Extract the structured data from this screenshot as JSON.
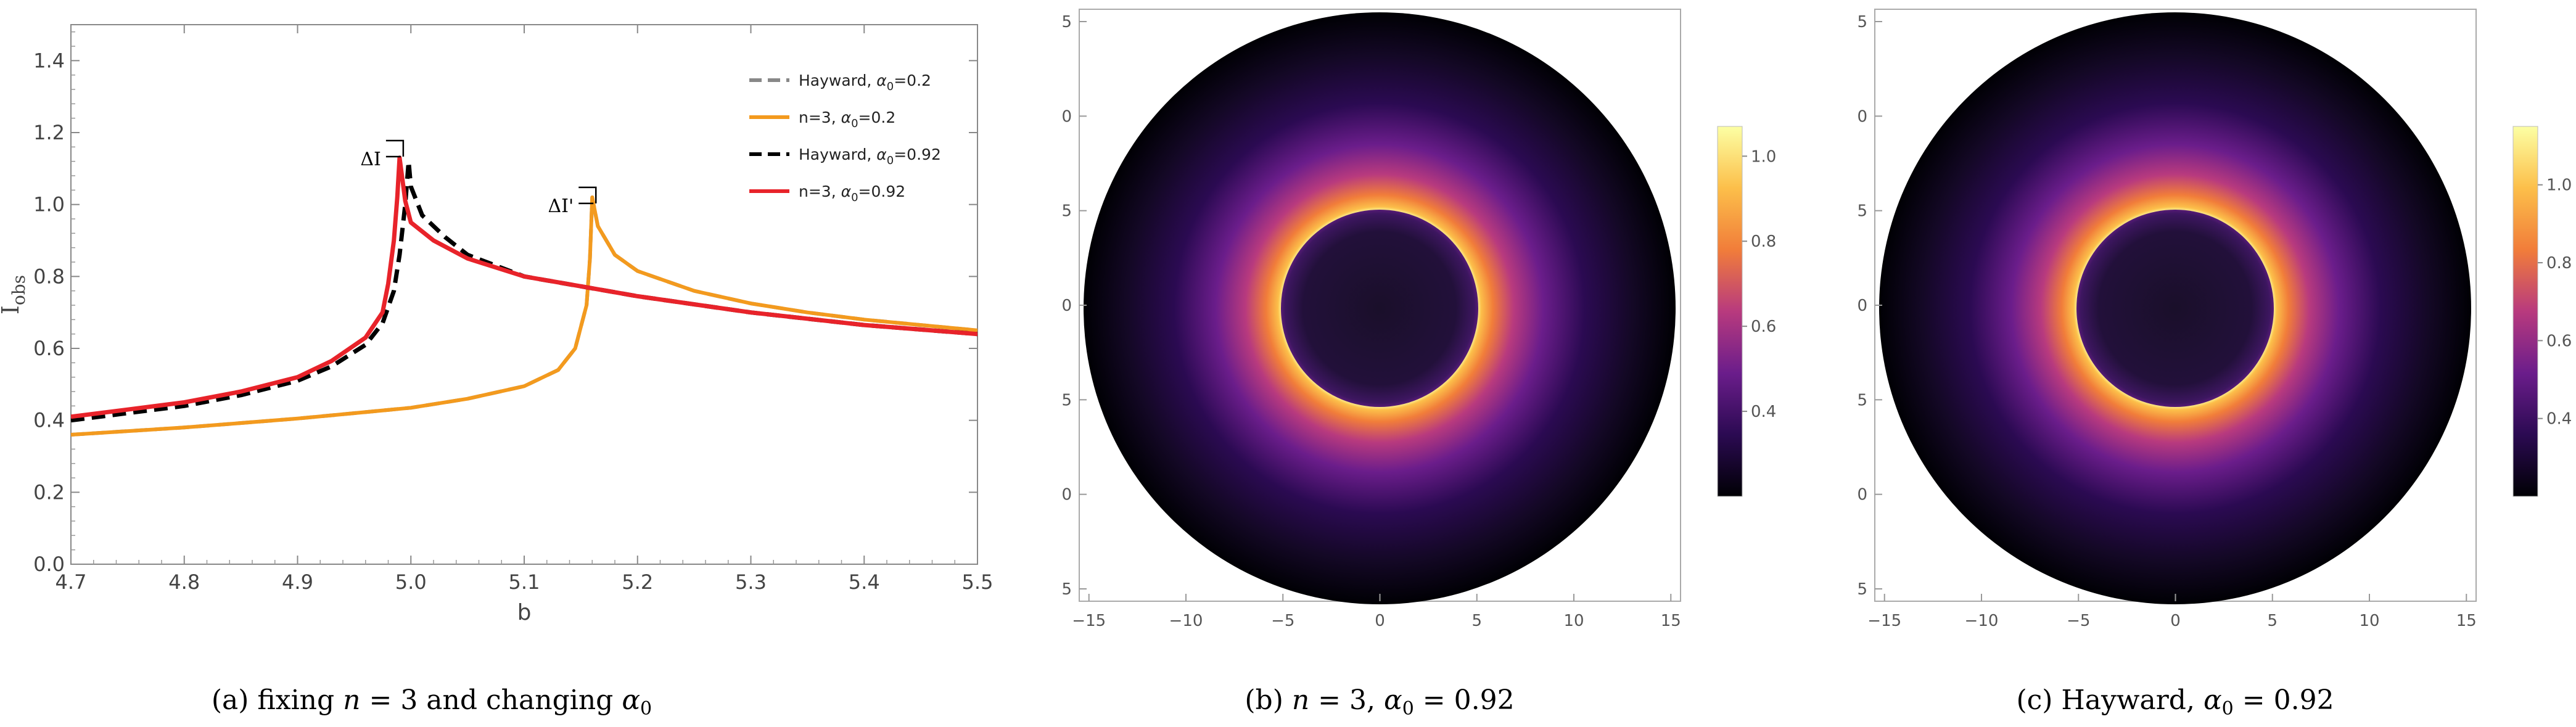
{
  "chart_data": [
    {
      "id": "a",
      "type": "line",
      "caption": "(a) fixing n = 3 and changing α0",
      "xlabel": "b",
      "ylabel": "Iobs",
      "xlim": [
        4.7,
        5.5
      ],
      "ylim": [
        0.0,
        1.5
      ],
      "xticks": [
        "4.7",
        "4.8",
        "4.9",
        "5.0",
        "5.1",
        "5.2",
        "5.3",
        "5.4",
        "5.5"
      ],
      "yticks": [
        "0.0",
        "0.2",
        "0.4",
        "0.6",
        "0.8",
        "1.0",
        "1.2",
        "1.4"
      ],
      "legend_position": "top-right",
      "annotations": [
        {
          "label": "ΔI",
          "x": 4.99,
          "y": 1.14
        },
        {
          "label": "ΔI'",
          "x": 5.16,
          "y": 1.01
        }
      ],
      "series": [
        {
          "name": "Hayward, α0=0.2",
          "color": "#888888",
          "style": "dashed",
          "x": [
            4.7,
            4.8,
            4.9,
            5.0,
            5.05,
            5.1,
            5.13,
            5.145,
            5.155,
            5.158,
            5.16,
            5.165,
            5.18,
            5.2,
            5.25,
            5.3,
            5.35,
            5.4,
            5.45,
            5.5
          ],
          "y": [
            0.36,
            0.38,
            0.405,
            0.435,
            0.46,
            0.495,
            0.54,
            0.6,
            0.72,
            0.85,
            1.02,
            0.94,
            0.86,
            0.815,
            0.76,
            0.725,
            0.7,
            0.68,
            0.665,
            0.65
          ]
        },
        {
          "name": "n=3, α0=0.2",
          "color": "#f39a1e",
          "style": "solid",
          "x": [
            4.7,
            4.8,
            4.9,
            5.0,
            5.05,
            5.1,
            5.13,
            5.145,
            5.155,
            5.158,
            5.16,
            5.165,
            5.18,
            5.2,
            5.25,
            5.3,
            5.35,
            5.4,
            5.45,
            5.5
          ],
          "y": [
            0.36,
            0.38,
            0.405,
            0.435,
            0.46,
            0.495,
            0.54,
            0.6,
            0.72,
            0.85,
            1.02,
            0.94,
            0.86,
            0.815,
            0.76,
            0.725,
            0.7,
            0.68,
            0.665,
            0.65
          ]
        },
        {
          "name": "Hayward, α0=0.92",
          "color": "#000000",
          "style": "dashed",
          "x": [
            4.7,
            4.75,
            4.8,
            4.85,
            4.9,
            4.93,
            4.96,
            4.975,
            4.985,
            4.99,
            4.995,
            4.998,
            5.0,
            5.01,
            5.03,
            5.05,
            5.1,
            5.2,
            5.3,
            5.4,
            5.5
          ],
          "y": [
            0.4,
            0.42,
            0.44,
            0.47,
            0.51,
            0.55,
            0.61,
            0.67,
            0.76,
            0.86,
            1.0,
            1.12,
            1.05,
            0.97,
            0.91,
            0.86,
            0.8,
            0.745,
            0.7,
            0.665,
            0.64
          ]
        },
        {
          "name": "n=3, α0=0.92",
          "color": "#e8232a",
          "style": "solid",
          "x": [
            4.7,
            4.75,
            4.8,
            4.85,
            4.9,
            4.93,
            4.96,
            4.975,
            4.98,
            4.985,
            4.988,
            4.99,
            4.995,
            5.0,
            5.02,
            5.05,
            5.1,
            5.2,
            5.3,
            5.4,
            5.5
          ],
          "y": [
            0.41,
            0.43,
            0.45,
            0.48,
            0.52,
            0.565,
            0.63,
            0.7,
            0.78,
            0.9,
            1.02,
            1.13,
            1.01,
            0.95,
            0.9,
            0.85,
            0.8,
            0.745,
            0.7,
            0.665,
            0.64
          ]
        }
      ]
    },
    {
      "id": "b",
      "type": "heatmap",
      "caption": "(b) n = 3, α0 = 0.92",
      "xticks": [
        "−15",
        "−10",
        "−5",
        "0",
        "5",
        "10",
        "15"
      ],
      "yticks": [
        "5",
        "0",
        "5",
        "0",
        "5",
        "0",
        "5"
      ],
      "xlim": [
        -15.5,
        15.5
      ],
      "ylim": [
        -15.5,
        15.5
      ],
      "colorbar_ticks": [
        "1.0",
        "0.8",
        "0.6",
        "0.4"
      ],
      "colorbar_range": [
        0.2,
        1.07
      ],
      "ring_radius": 5.0,
      "disk_radius": 15.0,
      "colorscale": [
        "#000004",
        "#2b0a52",
        "#6b1d8b",
        "#b83a7e",
        "#f17d3a",
        "#fcbf4a",
        "#fcffa4"
      ]
    },
    {
      "id": "c",
      "type": "heatmap",
      "caption": "(c) Hayward, α0 = 0.92",
      "xticks": [
        "−15",
        "−10",
        "−5",
        "0",
        "5",
        "10",
        "15"
      ],
      "yticks": [
        "5",
        "0",
        "5",
        "0",
        "5",
        "0",
        "5"
      ],
      "xlim": [
        -15.5,
        15.5
      ],
      "ylim": [
        -15.5,
        15.5
      ],
      "colorbar_ticks": [
        "1.0",
        "0.8",
        "0.6",
        "0.4"
      ],
      "colorbar_range": [
        0.2,
        1.15
      ],
      "ring_radius": 5.0,
      "disk_radius": 15.0,
      "colorscale": [
        "#000004",
        "#2b0a52",
        "#6b1d8b",
        "#b83a7e",
        "#f17d3a",
        "#fcbf4a",
        "#fcffa4"
      ]
    }
  ],
  "captions": {
    "a": {
      "prefix": "(a) fixing ",
      "n": "n",
      "eq": " = 3 and changing ",
      "alpha": "α",
      "sub": "0"
    },
    "b": {
      "prefix": "(b) ",
      "n": "n",
      "eq1": " = 3, ",
      "alpha": "α",
      "sub": "0",
      "eq2": " = 0.92"
    },
    "c": {
      "prefix": "(c) Hayward, ",
      "alpha": "α",
      "sub": "0",
      "eq2": " = 0.92"
    }
  },
  "legend": [
    {
      "prefix": "Hayward, ",
      "alpha": "α",
      "sub": "0",
      "value": "=0.2"
    },
    {
      "prefix": "n=3, ",
      "alpha": "α",
      "sub": "0",
      "value": "=0.2"
    },
    {
      "prefix": "Hayward, ",
      "alpha": "α",
      "sub": "0",
      "value": "=0.92"
    },
    {
      "prefix": "n=3, ",
      "alpha": "α",
      "sub": "0",
      "value": "=0.92"
    }
  ],
  "ylabel_parts": {
    "main": "I",
    "sub": "obs"
  }
}
